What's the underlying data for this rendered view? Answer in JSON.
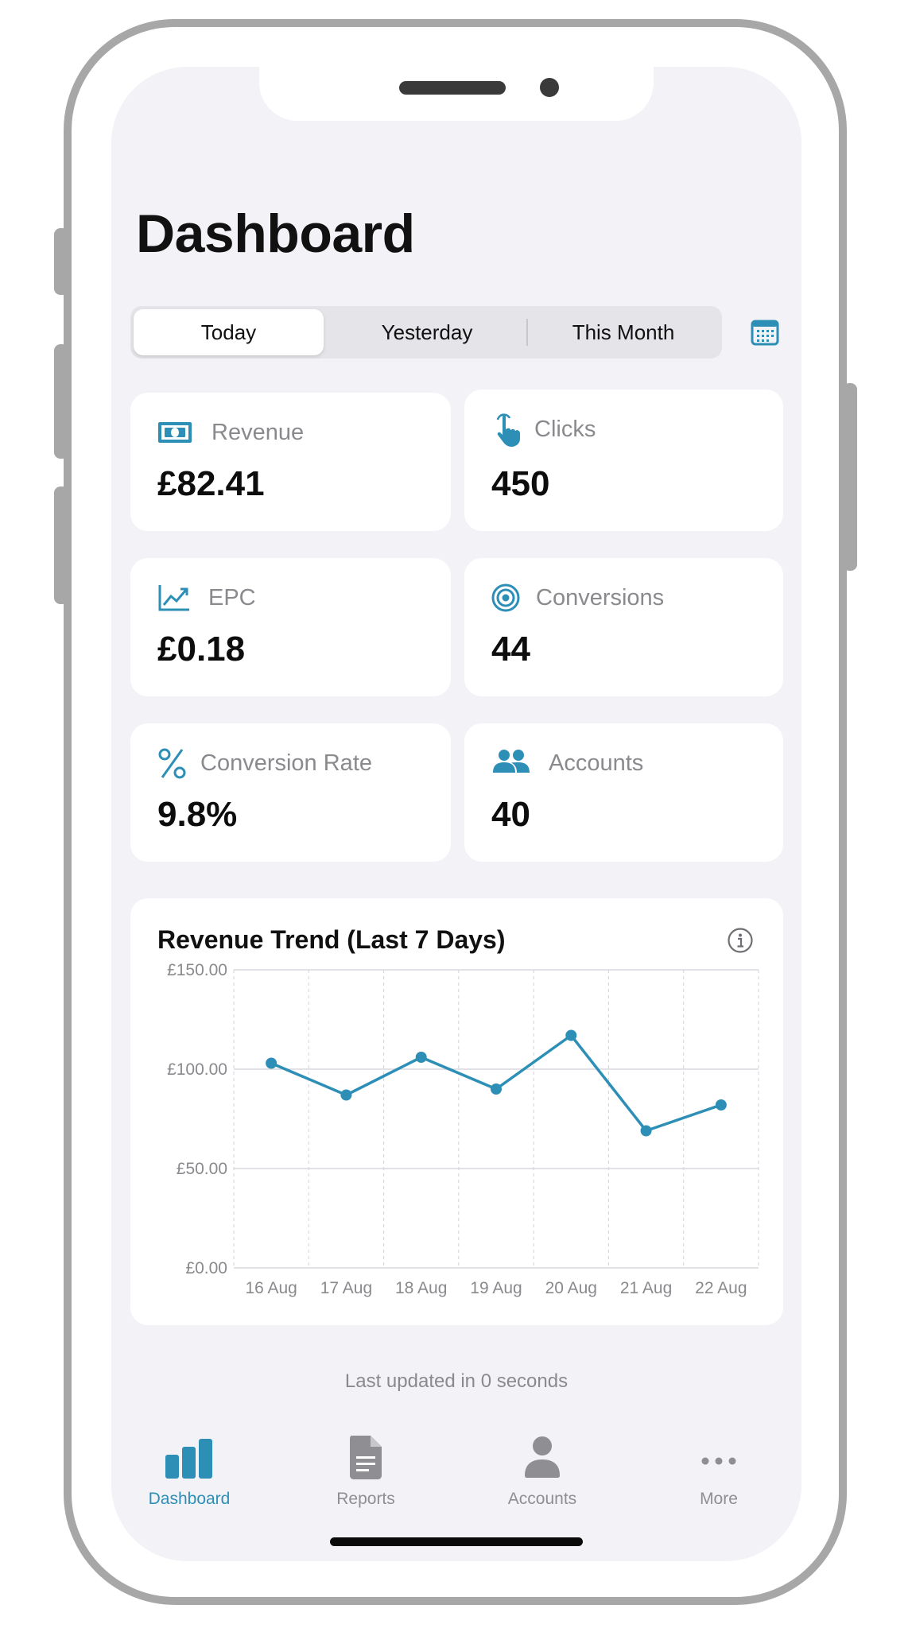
{
  "page": {
    "title": "Dashboard"
  },
  "colors": {
    "accent": "#2d8fb6",
    "muted": "#8e8e93",
    "background": "#f2f2f7"
  },
  "segments": [
    {
      "label": "Today",
      "selected": true
    },
    {
      "label": "Yesterday",
      "selected": false
    },
    {
      "label": "This Month",
      "selected": false
    }
  ],
  "calendar_icon": "calendar-icon",
  "kpis": {
    "revenue": {
      "label": "Revenue",
      "value": "£82.41",
      "icon": "banknote-icon"
    },
    "clicks": {
      "label": "Clicks",
      "value": "450",
      "icon": "pointer-hand-icon"
    },
    "epc": {
      "label": "EPC",
      "value": "£0.18",
      "icon": "trend-chart-icon"
    },
    "conversions": {
      "label": "Conversions",
      "value": "44",
      "icon": "target-icon"
    },
    "conversion_rate": {
      "label": "Conversion Rate",
      "value": "9.8%",
      "icon": "percent-icon"
    },
    "accounts": {
      "label": "Accounts",
      "value": "40",
      "icon": "people-icon"
    }
  },
  "chart_card": {
    "title": "Revenue Trend (Last 7 Days)",
    "info_icon": "info-icon"
  },
  "chart_data": {
    "type": "line",
    "title": "Revenue Trend (Last 7 Days)",
    "categories": [
      "16 Aug",
      "17 Aug",
      "18 Aug",
      "19 Aug",
      "20 Aug",
      "21 Aug",
      "22 Aug"
    ],
    "values": [
      103,
      87,
      106,
      90,
      117,
      69,
      82
    ],
    "yticks": [
      "£0.00",
      "£50.00",
      "£100.00",
      "£150.00"
    ],
    "ylim": [
      0,
      150
    ],
    "grid": true,
    "color": "#2d8fb6"
  },
  "footer": {
    "updated": "Last updated in 0 seconds"
  },
  "tabs": [
    {
      "label": "Dashboard",
      "icon": "bar-chart-icon",
      "active": true
    },
    {
      "label": "Reports",
      "icon": "document-icon",
      "active": false
    },
    {
      "label": "Accounts",
      "icon": "person-icon",
      "active": false
    },
    {
      "label": "More",
      "icon": "ellipsis-icon",
      "active": false
    }
  ]
}
